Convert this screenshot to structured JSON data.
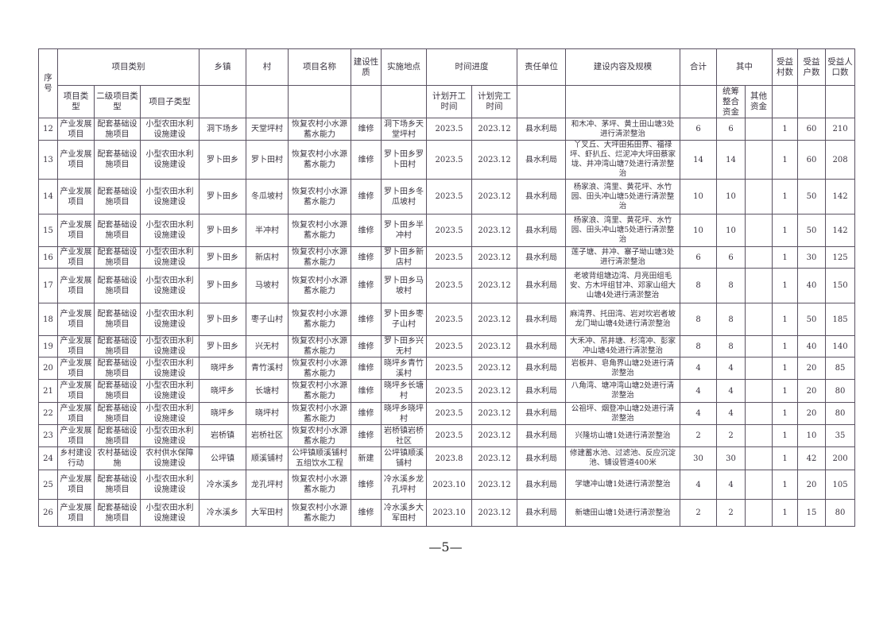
{
  "header": {
    "seq": "序号",
    "category": "项目类别",
    "township": "乡镇",
    "village": "村",
    "project_name": "项目名称",
    "nature": "建设性质",
    "location": "实施地点",
    "schedule": "时间进度",
    "unit": "责任单位",
    "content": "建设内容及规模",
    "total": "合计",
    "of_which": "其中",
    "villages": "受益村数",
    "households": "受益户数",
    "population": "受益人口数",
    "type": "项目类型",
    "level2": "二级项目类型",
    "subtype": "项目子类型",
    "start": "计划开工时间",
    "end": "计划完工时间",
    "integrated": "统筹整合资金",
    "other": "其他资金"
  },
  "rows": [
    {
      "seq": "12",
      "type": "产业发展项目",
      "level2": "配套基础设施项目",
      "subtype": "小型农田水利设施建设",
      "township": "洞下场乡",
      "village": "天堂坪村",
      "name": "恢复农村小水源蓄水能力",
      "nature": "维修",
      "location": "洞下场乡天堂坪村",
      "start": "2023.5",
      "end": "2023.12",
      "unit": "县水利局",
      "content": "和木冲、茅坪、黄土田山塘3处进行清淤整治",
      "total": "6",
      "integrated": "6",
      "other": "",
      "villages": "1",
      "households": "60",
      "population": "210"
    },
    {
      "seq": "13",
      "type": "产业发展项目",
      "level2": "配套基础设施项目",
      "subtype": "小型农田水利设施建设",
      "township": "罗卜田乡",
      "village": "罗卜田村",
      "name": "恢复农村小水源蓄水能力",
      "nature": "维修",
      "location": "罗卜田乡罗卜田村",
      "start": "2023.5",
      "end": "2023.12",
      "unit": "县水利局",
      "content": "丫叉丘、大坪田拓田界、福禄坪、虾扒丘、烂泥冲大坪田蔡家垅、井冲湾山塘7处进行清淤整治",
      "total": "14",
      "integrated": "14",
      "other": "",
      "villages": "1",
      "households": "60",
      "population": "208"
    },
    {
      "seq": "14",
      "type": "产业发展项目",
      "level2": "配套基础设施项目",
      "subtype": "小型农田水利设施建设",
      "township": "罗卜田乡",
      "village": "冬瓜坡村",
      "name": "恢复农村小水源蓄水能力",
      "nature": "维修",
      "location": "罗卜田乡冬瓜坡村",
      "start": "2023.5",
      "end": "2023.12",
      "unit": "县水利局",
      "content": "杨家浪、湾里、黄花坪、水竹园、田头冲山塘5处进行清淤整治",
      "total": "10",
      "integrated": "10",
      "other": "",
      "villages": "1",
      "households": "50",
      "population": "142"
    },
    {
      "seq": "15",
      "type": "产业发展项目",
      "level2": "配套基础设施项目",
      "subtype": "小型农田水利设施建设",
      "township": "罗卜田乡",
      "village": "半冲村",
      "name": "恢复农村小水源蓄水能力",
      "nature": "维修",
      "location": "罗卜田乡半冲村",
      "start": "2023.5",
      "end": "2023.12",
      "unit": "县水利局",
      "content": "杨家浪、湾里、黄花坪、水竹园、田头冲山塘5处进行清淤整治",
      "total": "10",
      "integrated": "10",
      "other": "",
      "villages": "1",
      "households": "50",
      "population": "142"
    },
    {
      "seq": "16",
      "type": "产业发展项目",
      "level2": "配套基础设施项目",
      "subtype": "小型农田水利设施建设",
      "township": "罗卜田乡",
      "village": "新店村",
      "name": "恢复农村小水源蓄水能力",
      "nature": "维修",
      "location": "罗卜田乡新店村",
      "start": "2023.5",
      "end": "2023.12",
      "unit": "县水利局",
      "content": "莲子塘、井冲、寨子坳山塘3处进行清淤整治",
      "total": "6",
      "integrated": "6",
      "other": "",
      "villages": "1",
      "households": "30",
      "population": "125"
    },
    {
      "seq": "17",
      "type": "产业发展项目",
      "level2": "配套基础设施项目",
      "subtype": "小型农田水利设施建设",
      "township": "罗卜田乡",
      "village": "马坡村",
      "name": "恢复农村小水源蓄水能力",
      "nature": "维修",
      "location": "罗卜田乡马坡村",
      "start": "2023.5",
      "end": "2023.12",
      "unit": "县水利局",
      "content": "老坡背组塘边湾、月亮田组毛安、方木坪组甘冲、邓家山组大山塘4处进行清淤整治",
      "total": "8",
      "integrated": "8",
      "other": "",
      "villages": "1",
      "households": "40",
      "population": "150"
    },
    {
      "seq": "18",
      "type": "产业发展项目",
      "level2": "配套基础设施项目",
      "subtype": "小型农田水利设施建设",
      "township": "罗卜田乡",
      "village": "枣子山村",
      "name": "恢复农村小水源蓄水能力",
      "nature": "维修",
      "location": "罗卜田乡枣子山村",
      "start": "2023.5",
      "end": "2023.12",
      "unit": "县水利局",
      "content": "麻湾界、托田湾、岩对坎岩者坡龙门坳山塘4处进行清淤整治",
      "total": "8",
      "integrated": "8",
      "other": "",
      "villages": "1",
      "households": "50",
      "population": "185"
    },
    {
      "seq": "19",
      "type": "产业发展项目",
      "level2": "配套基础设施项目",
      "subtype": "小型农田水利设施建设",
      "township": "罗卜田乡",
      "village": "兴无村",
      "name": "恢复农村小水源蓄水能力",
      "nature": "维修",
      "location": "罗卜田乡兴无村",
      "start": "2023.5",
      "end": "2023.12",
      "unit": "县水利局",
      "content": "大禾冲、吊井塘、杉湾冲、彭家冲山塘4处进行清淤整治",
      "total": "8",
      "integrated": "8",
      "other": "",
      "villages": "1",
      "households": "40",
      "population": "140"
    },
    {
      "seq": "20",
      "type": "产业发展项目",
      "level2": "配套基础设施项目",
      "subtype": "小型农田水利设施建设",
      "township": "晓坪乡",
      "village": "青竹溪村",
      "name": "恢复农村小水源蓄水能力",
      "nature": "维修",
      "location": "晓坪乡青竹溪村",
      "start": "2023.5",
      "end": "2023.12",
      "unit": "县水利局",
      "content": "岩板井、皂角界山塘2处进行清淤整治",
      "total": "4",
      "integrated": "4",
      "other": "",
      "villages": "1",
      "households": "20",
      "population": "85"
    },
    {
      "seq": "21",
      "type": "产业发展项目",
      "level2": "配套基础设施项目",
      "subtype": "小型农田水利设施建设",
      "township": "晓坪乡",
      "village": "长塘村",
      "name": "恢复农村小水源蓄水能力",
      "nature": "维修",
      "location": "晓坪乡长塘村",
      "start": "2023.5",
      "end": "2023.12",
      "unit": "县水利局",
      "content": "八角湾、塘冲湾山塘2处进行清淤整治",
      "total": "4",
      "integrated": "4",
      "other": "",
      "villages": "1",
      "households": "20",
      "population": "80"
    },
    {
      "seq": "22",
      "type": "产业发展项目",
      "level2": "配套基础设施项目",
      "subtype": "小型农田水利设施建设",
      "township": "晓坪乡",
      "village": "晓坪村",
      "name": "恢复农村小水源蓄水能力",
      "nature": "维修",
      "location": "晓坪乡晓坪村",
      "start": "2023.5",
      "end": "2023.12",
      "unit": "县水利局",
      "content": "公祖坪、烟登冲山塘2处进行清淤整治",
      "total": "4",
      "integrated": "4",
      "other": "",
      "villages": "1",
      "households": "20",
      "population": "80"
    },
    {
      "seq": "23",
      "type": "产业发展项目",
      "level2": "配套基础设施项目",
      "subtype": "小型农田水利设施建设",
      "township": "岩桥镇",
      "village": "岩桥社区",
      "name": "恢复农村小水源蓄水能力",
      "nature": "维修",
      "location": "岩桥镇岩桥社区",
      "start": "2023.5",
      "end": "2023.12",
      "unit": "县水利局",
      "content": "兴隆坊山塘1处进行清淤整治",
      "total": "2",
      "integrated": "2",
      "other": "",
      "villages": "1",
      "households": "10",
      "population": "35"
    },
    {
      "seq": "24",
      "type": "乡村建设行动",
      "level2": "农村基础设施",
      "subtype": "农村供水保障设施建设",
      "township": "公坪镇",
      "village": "顺溪铺村",
      "name": "公坪镇顺溪铺村五组饮水工程",
      "nature": "新建",
      "location": "公坪镇顺溪铺村",
      "start": "2023.8",
      "end": "2023.12",
      "unit": "县水利局",
      "content": "修建蓄水池、过滤池、反应沉淀池、铺设管道400米",
      "total": "30",
      "integrated": "30",
      "other": "",
      "villages": "1",
      "households": "42",
      "population": "200"
    },
    {
      "seq": "25",
      "type": "产业发展项目",
      "level2": "配套基础设施项目",
      "subtype": "小型农田水利设施建设",
      "township": "冷水溪乡",
      "village": "龙孔坪村",
      "name": "恢复农村小水源蓄水能力",
      "nature": "维修",
      "location": "冷水溪乡龙孔坪村",
      "start": "2023.10",
      "end": "2023.12",
      "unit": "县水利局",
      "content": "学塘冲山塘1处进行清淤整治",
      "total": "4",
      "integrated": "4",
      "other": "",
      "villages": "1",
      "households": "20",
      "population": "105"
    },
    {
      "seq": "26",
      "type": "产业发展项目",
      "level2": "配套基础设施项目",
      "subtype": "小型农田水利设施建设",
      "township": "冷水溪乡",
      "village": "大军田村",
      "name": "恢复农村小水源蓄水能力",
      "nature": "维修",
      "location": "冷水溪乡大军田村",
      "start": "2023.10",
      "end": "2023.12",
      "unit": "县水利局",
      "content": "新塘田山塘1处进行清淤整治",
      "total": "2",
      "integrated": "2",
      "other": "",
      "villages": "1",
      "households": "15",
      "population": "80"
    }
  ],
  "footer": {
    "page": "—5—"
  }
}
